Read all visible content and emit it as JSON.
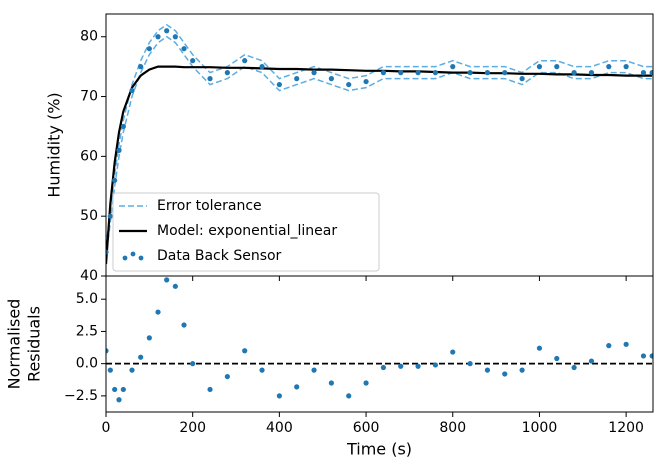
{
  "chart_data": [
    {
      "type": "line",
      "ylabel": "Humidity (%)",
      "x": [
        0,
        10,
        20,
        30,
        40,
        60,
        80,
        100,
        120,
        140,
        160,
        180,
        200,
        240,
        280,
        320,
        360,
        400,
        440,
        480,
        520,
        560,
        600,
        640,
        680,
        720,
        760,
        800,
        840,
        880,
        920,
        960,
        1000,
        1040,
        1080,
        1120,
        1160,
        1200,
        1240,
        1260
      ],
      "xlim": [
        0,
        1262
      ],
      "ylim": [
        40,
        83.8
      ],
      "xticks": [
        0,
        200,
        400,
        600,
        800,
        1000,
        1200
      ],
      "yticks": [
        40,
        50,
        60,
        70,
        80
      ],
      "legend": "lower left",
      "series": [
        {
          "name": "Error tolerance",
          "color": "#5dade2",
          "style": "dashed",
          "upper": [
            45,
            51,
            57,
            62,
            66,
            72,
            76,
            79,
            81,
            82,
            81,
            79,
            77,
            74,
            75,
            77,
            76,
            73,
            74,
            75,
            74,
            73,
            73.5,
            75,
            75,
            75,
            75,
            76,
            75,
            75,
            75,
            74,
            76,
            76,
            75,
            75,
            76,
            76,
            75,
            75
          ],
          "lower": [
            43,
            49,
            55,
            60,
            64,
            70,
            74,
            77,
            79,
            80,
            79,
            77,
            75,
            72,
            73,
            75,
            74,
            71,
            72,
            73,
            72,
            71,
            71.5,
            73,
            73,
            73,
            73,
            74,
            73,
            73,
            73,
            72,
            74,
            74,
            73,
            73,
            74,
            74,
            73,
            73
          ]
        },
        {
          "name": "Model:  exponential_linear",
          "color": "#000000",
          "style": "solid",
          "values": [
            42,
            52,
            59,
            64,
            67.5,
            71.5,
            73.5,
            74.5,
            75,
            75,
            75,
            74.9,
            74.9,
            74.9,
            74.8,
            74.8,
            74.7,
            74.6,
            74.6,
            74.5,
            74.5,
            74.4,
            74.3,
            74.3,
            74.2,
            74.2,
            74.1,
            74,
            74,
            73.9,
            73.9,
            73.8,
            73.8,
            73.7,
            73.7,
            73.6,
            73.6,
            73.5,
            73.5,
            73.5
          ]
        },
        {
          "name": "Data Back Sensor",
          "color": "#1f77b4",
          "style": "dots",
          "values": [
            44,
            50,
            56,
            61,
            65,
            71,
            75,
            78,
            80,
            81,
            80,
            78,
            76,
            73,
            74,
            76,
            75,
            72,
            73,
            74,
            73,
            72,
            72.5,
            74,
            74,
            74,
            74,
            75,
            74,
            74,
            74,
            73,
            75,
            75,
            74,
            74,
            75,
            75,
            74,
            74
          ]
        }
      ]
    },
    {
      "type": "scatter",
      "ylabel": [
        "Normalised",
        "Residuals"
      ],
      "xlabel": "Time (s)",
      "x": [
        0,
        10,
        20,
        30,
        40,
        60,
        80,
        100,
        120,
        140,
        160,
        180,
        200,
        240,
        280,
        320,
        360,
        400,
        440,
        480,
        520,
        560,
        600,
        640,
        680,
        720,
        760,
        800,
        840,
        880,
        920,
        960,
        1000,
        1040,
        1080,
        1120,
        1160,
        1200,
        1240,
        1260
      ],
      "values": [
        1,
        -0.5,
        -2,
        -2.8,
        -2,
        -0.5,
        0.5,
        2,
        4,
        6.5,
        6,
        3,
        0,
        -2,
        -1,
        1,
        -0.5,
        -2.5,
        -1.8,
        -0.5,
        -1.5,
        -2.5,
        -1.5,
        -0.3,
        -0.2,
        -0.2,
        -0.1,
        0.9,
        0,
        -0.5,
        -0.8,
        -0.5,
        1.2,
        0.4,
        -0.3,
        0.2,
        1.4,
        1.5,
        0.6,
        0.6
      ],
      "color": "#1f77b4",
      "hline": 0,
      "hline_color": "#000000",
      "xlim": [
        0,
        1262
      ],
      "ylim": [
        -3.75,
        6.8
      ],
      "xticks": [
        0,
        200,
        400,
        600,
        800,
        1000,
        1200
      ],
      "yticks": [
        {
          "value": -2.5,
          "label": "−2.5"
        },
        {
          "value": 0,
          "label": "0.0"
        },
        {
          "value": 2.5,
          "label": "2.5"
        },
        {
          "value": 5,
          "label": "5.0"
        }
      ]
    }
  ]
}
